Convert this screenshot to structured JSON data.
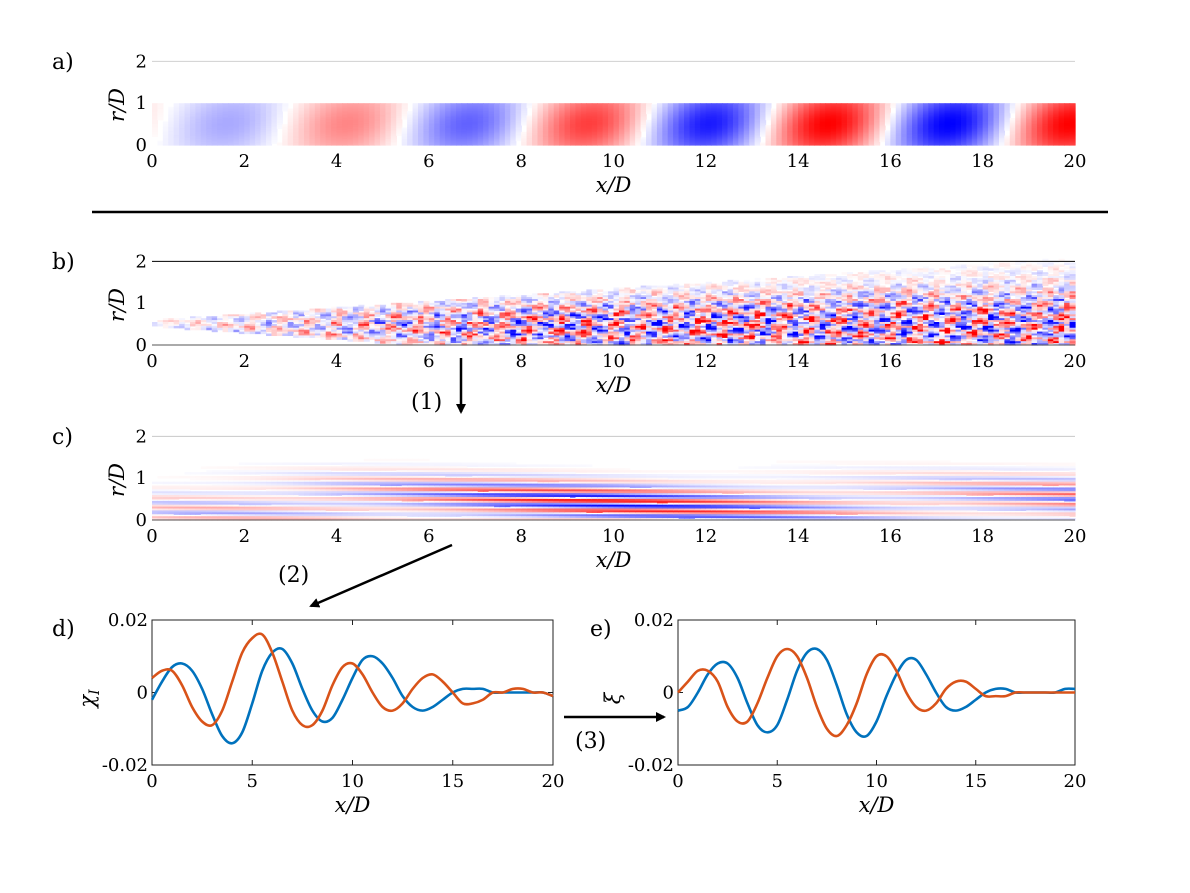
{
  "figure": {
    "panels": [
      {
        "id": "a",
        "label": "a)",
        "kind": "field",
        "pattern": "mode",
        "xlabel": "x/D",
        "ylabel": "r/D",
        "xticks": [
          "0",
          "2",
          "4",
          "6",
          "8",
          "10",
          "12",
          "14",
          "16",
          "18",
          "20"
        ],
        "yticks": [
          "0",
          "1",
          "2"
        ],
        "xlim": [
          0,
          20
        ],
        "ylim": [
          0,
          2.2
        ],
        "data_extent_r": [
          0,
          1
        ]
      },
      {
        "id": "b",
        "label": "b)",
        "kind": "field",
        "pattern": "turbulent",
        "xlabel": "x/D",
        "ylabel": "r/D",
        "xticks": [
          "0",
          "2",
          "4",
          "6",
          "8",
          "10",
          "12",
          "14",
          "16",
          "18",
          "20"
        ],
        "yticks": [
          "0",
          "1",
          "2"
        ],
        "xlim": [
          0,
          20
        ],
        "ylim": [
          0,
          2.2
        ]
      },
      {
        "id": "c",
        "label": "c)",
        "kind": "field",
        "pattern": "streaks",
        "xlabel": "x/D",
        "ylabel": "r/D",
        "xticks": [
          "0",
          "2",
          "4",
          "6",
          "8",
          "10",
          "12",
          "14",
          "16",
          "18",
          "20"
        ],
        "yticks": [
          "0",
          "1",
          "2"
        ],
        "xlim": [
          0,
          20
        ],
        "ylim": [
          0,
          2.2
        ]
      }
    ],
    "steps": {
      "s1": "(1)",
      "s2": "(2)",
      "s3": "(3)"
    },
    "colors": {
      "blue_series": "#0072BD",
      "orange_series": "#D95319",
      "field_positive": "#ff0000",
      "field_negative": "#0000ff"
    }
  },
  "chart_data": [
    {
      "id": "d",
      "panel_label": "d)",
      "type": "line",
      "xlabel": "x/D",
      "ylabel": "χ_I",
      "xlim": [
        0,
        20
      ],
      "ylim": [
        -0.02,
        0.02
      ],
      "xticks": [
        "0",
        "5",
        "10",
        "15",
        "20"
      ],
      "yticks": [
        "-0.02",
        "0",
        "0.02"
      ],
      "series": [
        {
          "color": "#0072BD",
          "x": [
            0,
            0.5,
            1,
            1.5,
            2,
            2.5,
            3,
            3.5,
            4,
            4.5,
            5,
            5.5,
            6,
            6.5,
            7,
            7.5,
            8,
            8.5,
            9,
            9.5,
            10,
            10.5,
            11,
            11.5,
            12,
            12.5,
            13,
            13.5,
            14,
            14.5,
            15,
            15.5,
            16,
            16.5,
            17,
            17.5,
            18,
            18.5,
            19,
            19.5,
            20
          ],
          "y": [
            -0.002,
            0.003,
            0.007,
            0.008,
            0.006,
            0.001,
            -0.006,
            -0.012,
            -0.014,
            -0.011,
            -0.003,
            0.006,
            0.011,
            0.012,
            0.008,
            0.001,
            -0.005,
            -0.008,
            -0.007,
            -0.002,
            0.004,
            0.009,
            0.01,
            0.008,
            0.004,
            -0.001,
            -0.004,
            -0.005,
            -0.004,
            -0.002,
            0.0,
            0.001,
            0.001,
            0.001,
            0.0,
            0.0,
            0.0,
            0.0,
            0.0,
            0.0,
            -0.001
          ]
        },
        {
          "color": "#D95319",
          "x": [
            0,
            0.5,
            1,
            1.5,
            2,
            2.5,
            3,
            3.5,
            4,
            4.5,
            5,
            5.5,
            6,
            6.5,
            7,
            7.5,
            8,
            8.5,
            9,
            9.5,
            10,
            10.5,
            11,
            11.5,
            12,
            12.5,
            13,
            13.5,
            14,
            14.5,
            15,
            15.5,
            16,
            16.5,
            17,
            17.5,
            18,
            18.5,
            19,
            19.5,
            20
          ],
          "y": [
            0.004,
            0.006,
            0.006,
            0.002,
            -0.004,
            -0.008,
            -0.009,
            -0.005,
            0.003,
            0.011,
            0.015,
            0.016,
            0.011,
            0.003,
            -0.005,
            -0.009,
            -0.009,
            -0.005,
            0.002,
            0.007,
            0.008,
            0.005,
            0.0,
            -0.004,
            -0.005,
            -0.003,
            0.001,
            0.004,
            0.005,
            0.003,
            0.0,
            -0.003,
            -0.003,
            -0.002,
            0.0,
            0.0,
            0.001,
            0.001,
            0.0,
            0.0,
            -0.001
          ]
        }
      ]
    },
    {
      "id": "e",
      "panel_label": "e)",
      "type": "line",
      "xlabel": "x/D",
      "ylabel": "ξ",
      "xlim": [
        0,
        20
      ],
      "ylim": [
        -0.02,
        0.02
      ],
      "xticks": [
        "0",
        "5",
        "10",
        "15",
        "20"
      ],
      "yticks": [
        "-0.02",
        "0",
        "0.02"
      ],
      "series": [
        {
          "color": "#0072BD",
          "x": [
            0,
            0.5,
            1,
            1.5,
            2,
            2.5,
            3,
            3.5,
            4,
            4.5,
            5,
            5.5,
            6,
            6.5,
            7,
            7.5,
            8,
            8.5,
            9,
            9.5,
            10,
            10.5,
            11,
            11.5,
            12,
            12.5,
            13,
            13.5,
            14,
            14.5,
            15,
            15.5,
            16,
            16.5,
            17,
            17.5,
            18,
            18.5,
            19,
            19.5,
            20
          ],
          "y": [
            -0.005,
            -0.004,
            0.0,
            0.005,
            0.008,
            0.008,
            0.004,
            -0.003,
            -0.009,
            -0.011,
            -0.009,
            -0.002,
            0.006,
            0.011,
            0.012,
            0.009,
            0.002,
            -0.006,
            -0.011,
            -0.012,
            -0.008,
            -0.001,
            0.005,
            0.009,
            0.009,
            0.005,
            0.0,
            -0.004,
            -0.005,
            -0.004,
            -0.002,
            0.0,
            0.001,
            0.001,
            0.0,
            0.0,
            0.0,
            0.0,
            0.0,
            0.001,
            0.001
          ]
        },
        {
          "color": "#D95319",
          "x": [
            0,
            0.5,
            1,
            1.5,
            2,
            2.5,
            3,
            3.5,
            4,
            4.5,
            5,
            5.5,
            6,
            6.5,
            7,
            7.5,
            8,
            8.5,
            9,
            9.5,
            10,
            10.5,
            11,
            11.5,
            12,
            12.5,
            13,
            13.5,
            14,
            14.5,
            15,
            15.5,
            16,
            16.5,
            17,
            17.5,
            18,
            18.5,
            19,
            19.5,
            20
          ],
          "y": [
            0.0,
            0.003,
            0.006,
            0.006,
            0.003,
            -0.004,
            -0.008,
            -0.008,
            -0.003,
            0.004,
            0.01,
            0.012,
            0.01,
            0.004,
            -0.004,
            -0.01,
            -0.012,
            -0.009,
            -0.003,
            0.005,
            0.01,
            0.01,
            0.006,
            0.0,
            -0.004,
            -0.005,
            -0.003,
            0.001,
            0.003,
            0.003,
            0.001,
            -0.001,
            -0.001,
            -0.001,
            0.0,
            0.0,
            0.0,
            0.0,
            0.0,
            0.0,
            0.0
          ]
        }
      ]
    }
  ]
}
